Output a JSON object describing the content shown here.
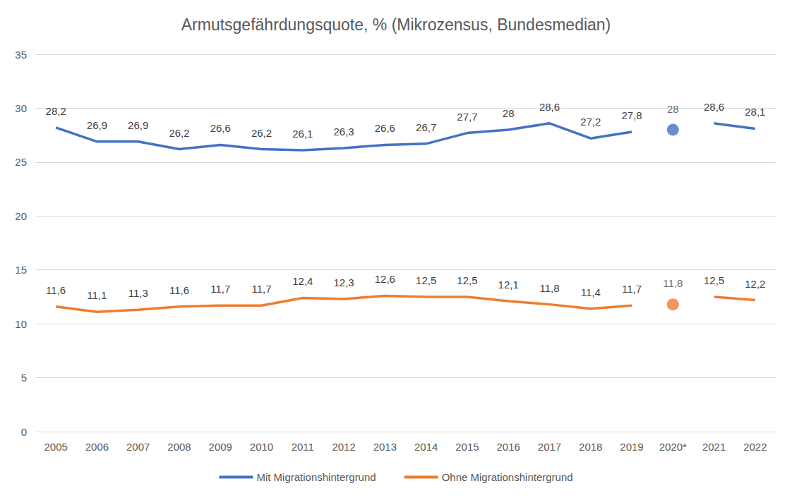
{
  "chart_data": {
    "type": "line",
    "title": "Armutsgefährdungsquote, % (Mikrozensus, Bundesmedian)",
    "categories": [
      "2005",
      "2006",
      "2007",
      "2008",
      "2009",
      "2010",
      "2011",
      "2012",
      "2013",
      "2014",
      "2015",
      "2016",
      "2017",
      "2018",
      "2019",
      "2020*",
      "2021",
      "2022"
    ],
    "series": [
      {
        "name": "Mit Migrationshintergrund",
        "color": "#4472c4",
        "type": "line",
        "values": [
          28.2,
          26.9,
          26.9,
          26.2,
          26.6,
          26.2,
          26.1,
          26.3,
          26.6,
          26.7,
          27.7,
          28,
          28.6,
          27.2,
          27.8,
          null,
          28.6,
          28.1
        ],
        "value_labels": [
          "28,2",
          "26,9",
          "26,9",
          "26,2",
          "26,6",
          "26,2",
          "26,1",
          "26,3",
          "26,6",
          "26,7",
          "27,7",
          "28",
          "28,6",
          "27,2",
          "27,8",
          null,
          "28,6",
          "28,1"
        ]
      },
      {
        "name": "Ohne Migrationshintergrund",
        "color": "#ed7d31",
        "type": "line",
        "values": [
          11.6,
          11.1,
          11.3,
          11.6,
          11.7,
          11.7,
          12.4,
          12.3,
          12.6,
          12.5,
          12.5,
          12.1,
          11.8,
          11.4,
          11.7,
          null,
          12.5,
          12.2
        ],
        "value_labels": [
          "11,6",
          "11,1",
          "11,3",
          "11,6",
          "11,7",
          "11,7",
          "12,4",
          "12,3",
          "12,6",
          "12,5",
          "12,5",
          "12,1",
          "11,8",
          "11,4",
          "11,7",
          null,
          "12,5",
          "12,2"
        ]
      },
      {
        "name": "Mit Migrationshintergrund",
        "color": "#4472c4",
        "type": "scatter",
        "values": [
          null,
          null,
          null,
          null,
          null,
          null,
          null,
          null,
          null,
          null,
          null,
          null,
          null,
          null,
          null,
          28,
          null,
          null
        ],
        "value_labels": [
          null,
          null,
          null,
          null,
          null,
          null,
          null,
          null,
          null,
          null,
          null,
          null,
          null,
          null,
          null,
          "28",
          null,
          null
        ]
      },
      {
        "name": "Ohne Migrationshintergrund",
        "color": "#ed7d31",
        "type": "scatter",
        "values": [
          null,
          null,
          null,
          null,
          null,
          null,
          null,
          null,
          null,
          null,
          null,
          null,
          null,
          null,
          null,
          11.8,
          null,
          null
        ],
        "value_labels": [
          null,
          null,
          null,
          null,
          null,
          null,
          null,
          null,
          null,
          null,
          null,
          null,
          null,
          null,
          null,
          "11,8",
          null,
          null
        ]
      }
    ],
    "ylim": [
      0,
      35
    ],
    "yticks": [
      0,
      5,
      10,
      15,
      20,
      25,
      30,
      35
    ],
    "grid": true,
    "legend": "bottom",
    "data_labels": true
  }
}
